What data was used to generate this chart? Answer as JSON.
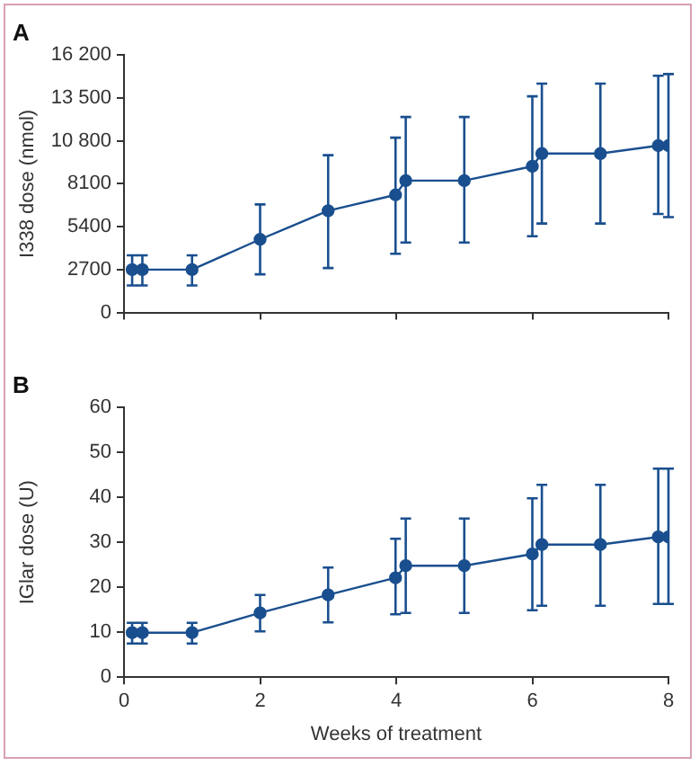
{
  "chart_data": [
    {
      "type": "line",
      "title": "A",
      "ylabel": "I338 dose (nmol)",
      "xlim": [
        0,
        8
      ],
      "xticks": [
        0,
        2,
        4,
        6,
        8
      ],
      "ylim": [
        0,
        16200
      ],
      "yticks": [
        0,
        {
          "value": 2700,
          "label": "2700"
        },
        {
          "value": 5400,
          "label": "5400"
        },
        {
          "value": 8100,
          "label": "8100"
        },
        {
          "value": 10800,
          "label": "10 800"
        },
        {
          "value": 13500,
          "label": "13 500"
        },
        {
          "value": 16200,
          "label": "16 200"
        }
      ],
      "tick_labels": "y",
      "grid": false,
      "legend": false,
      "marker": "circle",
      "line_style": "solid",
      "series": [
        {
          "color": "#1a4f8f",
          "x": [
            0.12,
            0.27,
            1,
            2,
            3,
            3.99,
            4.14,
            5,
            6,
            6.14,
            7,
            7.85,
            8
          ],
          "values": [
            2700,
            2700,
            2700,
            4600,
            6400,
            7400,
            8300,
            8300,
            9200,
            10000,
            10000,
            10500,
            10500
          ],
          "errors": [
            [
              1700,
              3600
            ],
            [
              1700,
              3600
            ],
            [
              1700,
              3600
            ],
            [
              2400,
              6800
            ],
            [
              2800,
              9900
            ],
            [
              3700,
              11000
            ],
            [
              4400,
              12300
            ],
            [
              4400,
              12300
            ],
            [
              4800,
              13600
            ],
            [
              5600,
              14400
            ],
            [
              5600,
              14400
            ],
            [
              6200,
              14900
            ],
            [
              6000,
              15000
            ]
          ]
        }
      ]
    },
    {
      "type": "line",
      "title": "B",
      "ylabel": "IGlar dose (U)",
      "xlabel": "Weeks of treatment",
      "xlim": [
        0,
        8
      ],
      "xticks": [
        0,
        2,
        4,
        6,
        8
      ],
      "ylim": [
        0,
        60
      ],
      "yticks": [
        0,
        10,
        20,
        30,
        40,
        50,
        60
      ],
      "grid": false,
      "legend": false,
      "marker": "circle",
      "line_style": "solid",
      "series": [
        {
          "color": "#1a4f8f",
          "x": [
            0.12,
            0.27,
            1,
            2,
            3,
            3.99,
            4.14,
            5,
            6,
            6.14,
            7,
            7.85,
            8
          ],
          "values": [
            9.9,
            9.9,
            9.9,
            14.3,
            18.3,
            22.1,
            24.8,
            24.8,
            27.4,
            29.5,
            29.5,
            31.2,
            31.2
          ],
          "errors": [
            [
              7.5,
              12.1
            ],
            [
              7.5,
              12.1
            ],
            [
              7.5,
              12.1
            ],
            [
              10.2,
              18.3
            ],
            [
              12.2,
              24.4
            ],
            [
              14,
              30.8
            ],
            [
              14.3,
              35.3
            ],
            [
              14.3,
              35.3
            ],
            [
              14.9,
              39.8
            ],
            [
              15.9,
              42.8
            ],
            [
              15.9,
              42.8
            ],
            [
              16.3,
              46.4
            ],
            [
              16.3,
              46.4
            ]
          ]
        }
      ]
    }
  ]
}
